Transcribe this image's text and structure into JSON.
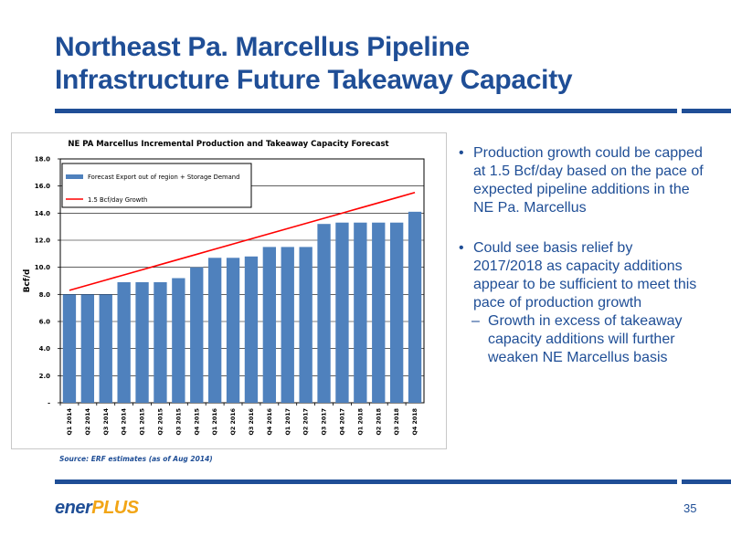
{
  "slide": {
    "title_line1": "Northeast Pa. Marcellus Pipeline",
    "title_line2": "Infrastructure Future Takeaway Capacity",
    "source": "Source:  ERF estimates (as of Aug 2014)",
    "page_number": "35",
    "logo": {
      "part1": "ener",
      "part2": "PLUS"
    },
    "colors": {
      "accent": "#1f4e96",
      "bar": "#4f81bd",
      "line": "#ff0000",
      "logo_orange": "#f2a516"
    }
  },
  "bullets": [
    {
      "text": "Production growth could be capped at 1.5 Bcf/day based on the pace of expected pipeline additions in the NE Pa. Marcellus"
    },
    {
      "text": "Could see basis relief by 2017/2018 as capacity additions appear to be sufficient to meet this pace of production growth"
    }
  ],
  "sub_bullet": {
    "text": "Growth in excess of takeaway capacity additions will further weaken NE Marcellus basis"
  },
  "chart_data": {
    "type": "bar",
    "title": "NE PA Marcellus Incremental Production and Takeaway Capacity Forecast",
    "ylabel": "Bcf/d",
    "xlabel": "",
    "ylim": [
      0,
      18
    ],
    "yticks": [
      {
        "value": 0,
        "label": "-"
      },
      {
        "value": 2,
        "label": "2.0"
      },
      {
        "value": 4,
        "label": "4.0"
      },
      {
        "value": 6,
        "label": "6.0"
      },
      {
        "value": 8,
        "label": "8.0"
      },
      {
        "value": 10,
        "label": "10.0"
      },
      {
        "value": 12,
        "label": "12.0"
      },
      {
        "value": 14,
        "label": "14.0"
      },
      {
        "value": 16,
        "label": "16.0"
      },
      {
        "value": 18,
        "label": "18.0"
      }
    ],
    "grid": true,
    "legend_position": "top-left",
    "categories": [
      "Q1 2014",
      "Q2 2014",
      "Q3 2014",
      "Q4 2014",
      "Q1 2015",
      "Q2 2015",
      "Q3 2015",
      "Q4 2015",
      "Q1 2016",
      "Q2 2016",
      "Q3 2016",
      "Q4 2016",
      "Q1 2017",
      "Q2 2017",
      "Q3 2017",
      "Q4 2017",
      "Q1 2018",
      "Q2 2018",
      "Q3 2018",
      "Q4 2018"
    ],
    "series": [
      {
        "name": "Forecast Export out of region + Storage Demand",
        "type": "bar",
        "values": [
          8.0,
          8.0,
          8.0,
          8.9,
          8.9,
          8.9,
          9.2,
          10.0,
          10.7,
          10.7,
          10.8,
          11.5,
          11.5,
          11.5,
          13.2,
          13.3,
          13.3,
          13.3,
          13.3,
          14.1
        ]
      },
      {
        "name": "1.5 Bcf/day Growth",
        "type": "line",
        "values": [
          8.3,
          8.68,
          9.06,
          9.44,
          9.82,
          10.2,
          10.58,
          10.96,
          11.34,
          11.72,
          12.1,
          12.48,
          12.86,
          13.24,
          13.62,
          14.0,
          14.38,
          14.76,
          15.14,
          15.52
        ]
      }
    ]
  }
}
